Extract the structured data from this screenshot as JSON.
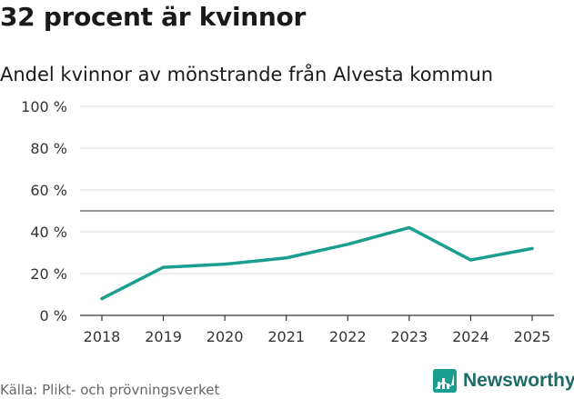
{
  "title": "32 procent är kvinnor",
  "subtitle": "Andel kvinnor av mönstrande från Alvesta kommun",
  "source": "Källa: Plikt- och prövningsverket",
  "brand": {
    "name": "Newsworthy"
  },
  "colors": {
    "line": "#1a9e8f",
    "reference": "#555555",
    "grid": "#dddddd",
    "brand": "#1a9e8f",
    "brand_text": "#1b6c68"
  },
  "chart_data": {
    "type": "line",
    "title": "32 procent är kvinnor",
    "subtitle": "Andel kvinnor av mönstrande från Alvesta kommun",
    "xlabel": "",
    "ylabel": "",
    "categories": [
      "2018",
      "2019",
      "2020",
      "2021",
      "2022",
      "2023",
      "2024",
      "2025"
    ],
    "series": [
      {
        "name": "Andel kvinnor",
        "values": [
          8,
          23,
          24.5,
          27.5,
          34,
          42,
          26.5,
          32
        ]
      }
    ],
    "yticks": [
      0,
      20,
      40,
      60,
      80,
      100
    ],
    "ytick_labels": [
      "0 %",
      "20 %",
      "40 %",
      "60 %",
      "80 %",
      "100 %"
    ],
    "ylim": [
      0,
      100
    ],
    "reference_line": 50,
    "grid": true,
    "legend": "none"
  }
}
